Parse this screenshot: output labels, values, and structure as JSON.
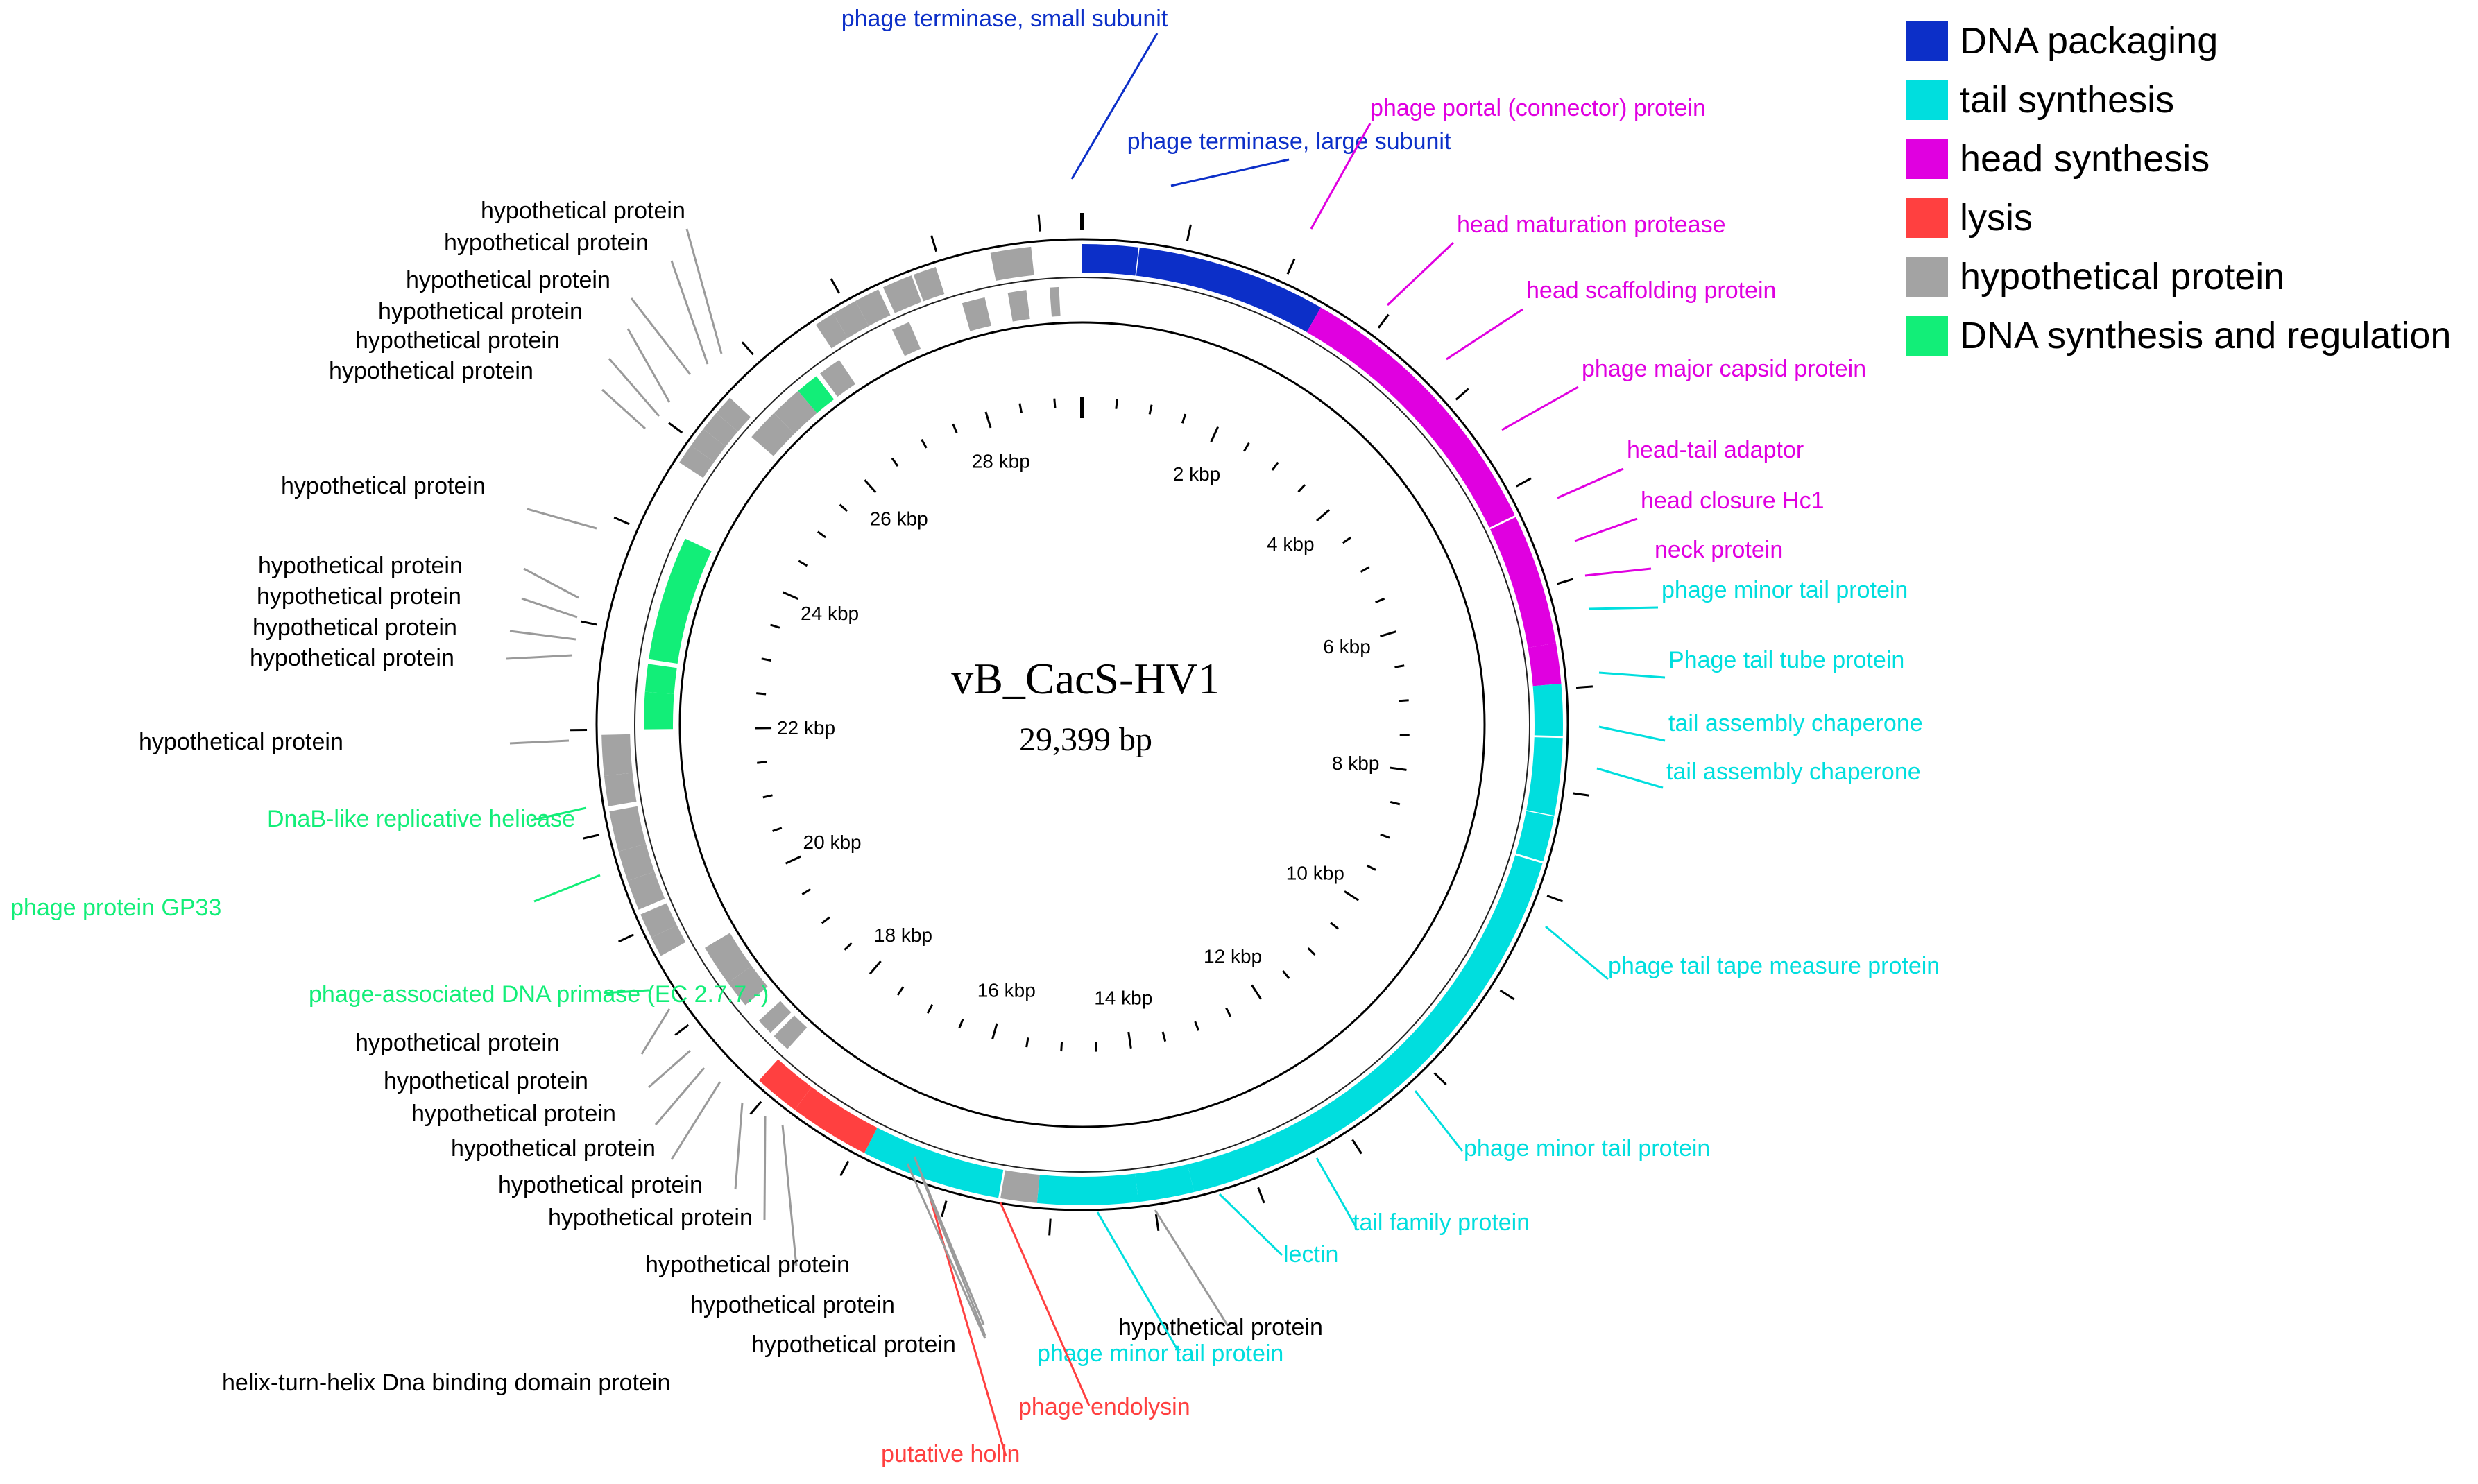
{
  "title": "vB_CacS-HV1",
  "length_label": "29,399 bp",
  "genome_length": 29399,
  "colors": {
    "DNA packaging": "#0c2fc8",
    "tail synthesis": "#00dede",
    "head synthesis": "#e000e0",
    "lysis": "#ff4040",
    "hypothetical protein": "#a3a3a3",
    "DNA synthesis and regulation": "#12ee78"
  },
  "legend": [
    {
      "label": "DNA packaging"
    },
    {
      "label": "tail synthesis"
    },
    {
      "label": "head synthesis"
    },
    {
      "label": "lysis"
    },
    {
      "label": "hypothetical protein"
    },
    {
      "label": "DNA synthesis and regulation"
    }
  ],
  "ticks": [
    "2 kbp",
    "4 kbp",
    "6 kbp",
    "8 kbp",
    "10 kbp",
    "12 kbp",
    "14 kbp",
    "16 kbp",
    "18 kbp",
    "20 kbp",
    "22 kbp",
    "24 kbp",
    "26 kbp",
    "28 kbp"
  ],
  "features": [
    {
      "start": 0,
      "end": 550,
      "strand": "+",
      "cat": "DNA packaging"
    },
    {
      "start": 560,
      "end": 2430,
      "strand": "+",
      "cat": "DNA packaging"
    },
    {
      "start": 2430,
      "end": 5240,
      "strand": "+",
      "cat": "head synthesis"
    },
    {
      "start": 5260,
      "end": 6550,
      "strand": "+",
      "cat": "head synthesis"
    },
    {
      "start": 6550,
      "end": 6950,
      "strand": "+",
      "cat": "head synthesis"
    },
    {
      "start": 6950,
      "end": 7460,
      "strand": "+",
      "cat": "tail synthesis"
    },
    {
      "start": 7480,
      "end": 8240,
      "strand": "+",
      "cat": "tail synthesis"
    },
    {
      "start": 8250,
      "end": 8700,
      "strand": "+",
      "cat": "tail synthesis"
    },
    {
      "start": 8720,
      "end": 13600,
      "strand": "+",
      "cat": "tail synthesis"
    },
    {
      "start": 13600,
      "end": 14150,
      "strand": "+",
      "cat": "tail synthesis"
    },
    {
      "start": 14150,
      "end": 15140,
      "strand": "+",
      "cat": "tail synthesis"
    },
    {
      "start": 15140,
      "end": 15500,
      "strand": "+",
      "cat": "hypothetical protein"
    },
    {
      "start": 15520,
      "end": 16900,
      "strand": "+",
      "cat": "tail synthesis"
    },
    {
      "start": 16900,
      "end": 17700,
      "strand": "+",
      "cat": "lysis"
    },
    {
      "start": 17700,
      "end": 18150,
      "strand": "+",
      "cat": "lysis"
    },
    {
      "start": 18150,
      "end": 18350,
      "strand": "-",
      "cat": "hypothetical protein"
    },
    {
      "start": 18400,
      "end": 18580,
      "strand": "-",
      "cat": "hypothetical protein"
    },
    {
      "start": 18800,
      "end": 19100,
      "strand": "-",
      "cat": "hypothetical protein"
    },
    {
      "start": 19100,
      "end": 19550,
      "strand": "-",
      "cat": "hypothetical protein"
    },
    {
      "start": 19700,
      "end": 19900,
      "strand": "+",
      "cat": "hypothetical protein"
    },
    {
      "start": 19900,
      "end": 20150,
      "strand": "+",
      "cat": "hypothetical protein"
    },
    {
      "start": 20200,
      "end": 20500,
      "strand": "+",
      "cat": "hypothetical protein"
    },
    {
      "start": 20500,
      "end": 20800,
      "strand": "+",
      "cat": "hypothetical protein"
    },
    {
      "start": 20800,
      "end": 21200,
      "strand": "+",
      "cat": "hypothetical protein"
    },
    {
      "start": 21250,
      "end": 21550,
      "strand": "+",
      "cat": "hypothetical protein"
    },
    {
      "start": 21550,
      "end": 21950,
      "strand": "+",
      "cat": "hypothetical protein"
    },
    {
      "start": 22000,
      "end": 22400,
      "strand": "-",
      "cat": "DNA synthesis and regulation"
    },
    {
      "start": 22400,
      "end": 22700,
      "strand": "-",
      "cat": "DNA synthesis and regulation"
    },
    {
      "start": 22750,
      "end": 24100,
      "strand": "-",
      "cat": "DNA synthesis and regulation"
    },
    {
      "start": 24750,
      "end": 24950,
      "strand": "+",
      "cat": "hypothetical protein"
    },
    {
      "start": 24950,
      "end": 25150,
      "strand": "+",
      "cat": "hypothetical protein"
    },
    {
      "start": 25150,
      "end": 25350,
      "strand": "+",
      "cat": "hypothetical protein"
    },
    {
      "start": 25350,
      "end": 25550,
      "strand": "+",
      "cat": "hypothetical protein"
    },
    {
      "start": 25400,
      "end": 25750,
      "strand": "-",
      "cat": "hypothetical protein"
    },
    {
      "start": 25750,
      "end": 26100,
      "strand": "-",
      "cat": "hypothetical protein"
    },
    {
      "start": 26100,
      "end": 26350,
      "strand": "-",
      "cat": "DNA synthesis and regulation"
    },
    {
      "start": 26400,
      "end": 26650,
      "strand": "-",
      "cat": "hypothetical protein"
    },
    {
      "start": 26650,
      "end": 26850,
      "strand": "+",
      "cat": "hypothetical protein"
    },
    {
      "start": 26850,
      "end": 27100,
      "strand": "+",
      "cat": "hypothetical protein"
    },
    {
      "start": 27100,
      "end": 27350,
      "strand": "+",
      "cat": "hypothetical protein"
    },
    {
      "start": 27400,
      "end": 27700,
      "strand": "+",
      "cat": "hypothetical protein"
    },
    {
      "start": 27720,
      "end": 27950,
      "strand": "+",
      "cat": "hypothetical protein"
    },
    {
      "start": 27300,
      "end": 27500,
      "strand": "-",
      "cat": "hypothetical protein"
    },
    {
      "start": 28100,
      "end": 28350,
      "strand": "-",
      "cat": "hypothetical protein"
    },
    {
      "start": 28500,
      "end": 28900,
      "strand": "+",
      "cat": "hypothetical protein"
    },
    {
      "start": 28600,
      "end": 28800,
      "strand": "-",
      "cat": "hypothetical protein"
    },
    {
      "start": 29050,
      "end": 29150,
      "strand": "-",
      "cat": "hypothetical protein"
    }
  ],
  "labels": [
    {
      "text": "phage terminase, small subunit",
      "cat": "DNA packaging"
    },
    {
      "text": "phage terminase, large subunit",
      "cat": "DNA packaging"
    },
    {
      "text": "phage portal (connector) protein",
      "cat": "head synthesis"
    },
    {
      "text": "head maturation protease",
      "cat": "head synthesis"
    },
    {
      "text": "head scaffolding protein",
      "cat": "head synthesis"
    },
    {
      "text": "phage major capsid protein",
      "cat": "head synthesis"
    },
    {
      "text": "head-tail adaptor",
      "cat": "head synthesis"
    },
    {
      "text": "head closure Hc1",
      "cat": "head synthesis"
    },
    {
      "text": "neck protein",
      "cat": "head synthesis"
    },
    {
      "text": "phage minor tail protein",
      "cat": "tail synthesis"
    },
    {
      "text": "Phage tail tube protein",
      "cat": "tail synthesis"
    },
    {
      "text": "tail assembly chaperone",
      "cat": "tail synthesis"
    },
    {
      "text": "tail assembly chaperone",
      "cat": "tail synthesis"
    },
    {
      "text": "phage tail tape measure protein",
      "cat": "tail synthesis"
    },
    {
      "text": "phage minor tail protein",
      "cat": "tail synthesis"
    },
    {
      "text": "tail family protein",
      "cat": "tail synthesis"
    },
    {
      "text": "lectin",
      "cat": "tail synthesis"
    },
    {
      "text": "hypothetical protein",
      "cat": "hypothetical protein"
    },
    {
      "text": "phage minor tail protein",
      "cat": "tail synthesis"
    },
    {
      "text": "phage endolysin",
      "cat": "lysis"
    },
    {
      "text": "putative holin",
      "cat": "lysis"
    },
    {
      "text": "hypothetical protein",
      "cat": "hypothetical protein"
    },
    {
      "text": "helix-turn-helix Dna binding domain protein",
      "cat": "hypothetical protein"
    },
    {
      "text": "hypothetical protein",
      "cat": "hypothetical protein"
    },
    {
      "text": "hypothetical protein",
      "cat": "hypothetical protein"
    },
    {
      "text": "hypothetical protein",
      "cat": "hypothetical protein"
    },
    {
      "text": "hypothetical protein",
      "cat": "hypothetical protein"
    },
    {
      "text": "hypothetical protein",
      "cat": "hypothetical protein"
    },
    {
      "text": "hypothetical protein",
      "cat": "hypothetical protein"
    },
    {
      "text": "hypothetical protein",
      "cat": "hypothetical protein"
    },
    {
      "text": "hypothetical protein",
      "cat": "hypothetical protein"
    },
    {
      "text": "phage-associated DNA primase (EC 2.7.7.-)",
      "cat": "DNA synthesis and regulation"
    },
    {
      "text": "phage protein GP33",
      "cat": "DNA synthesis and regulation"
    },
    {
      "text": "DnaB-like replicative helicase",
      "cat": "DNA synthesis and regulation"
    },
    {
      "text": "hypothetical protein",
      "cat": "hypothetical protein"
    },
    {
      "text": "hypothetical protein",
      "cat": "hypothetical protein"
    },
    {
      "text": "hypothetical protein",
      "cat": "hypothetical protein"
    },
    {
      "text": "hypothetical protein",
      "cat": "hypothetical protein"
    },
    {
      "text": "hypothetical protein",
      "cat": "hypothetical protein"
    },
    {
      "text": "hypothetical protein",
      "cat": "hypothetical protein"
    },
    {
      "text": "hypothetical protein",
      "cat": "hypothetical protein"
    },
    {
      "text": "hypothetical protein",
      "cat": "hypothetical protein"
    },
    {
      "text": "hypothetical protein",
      "cat": "hypothetical protein"
    },
    {
      "text": "hypothetical protein",
      "cat": "hypothetical protein"
    },
    {
      "text": "hypothetical protein",
      "cat": "hypothetical protein"
    },
    {
      "text": "hypothetical protein",
      "cat": "hypothetical protein"
    }
  ]
}
